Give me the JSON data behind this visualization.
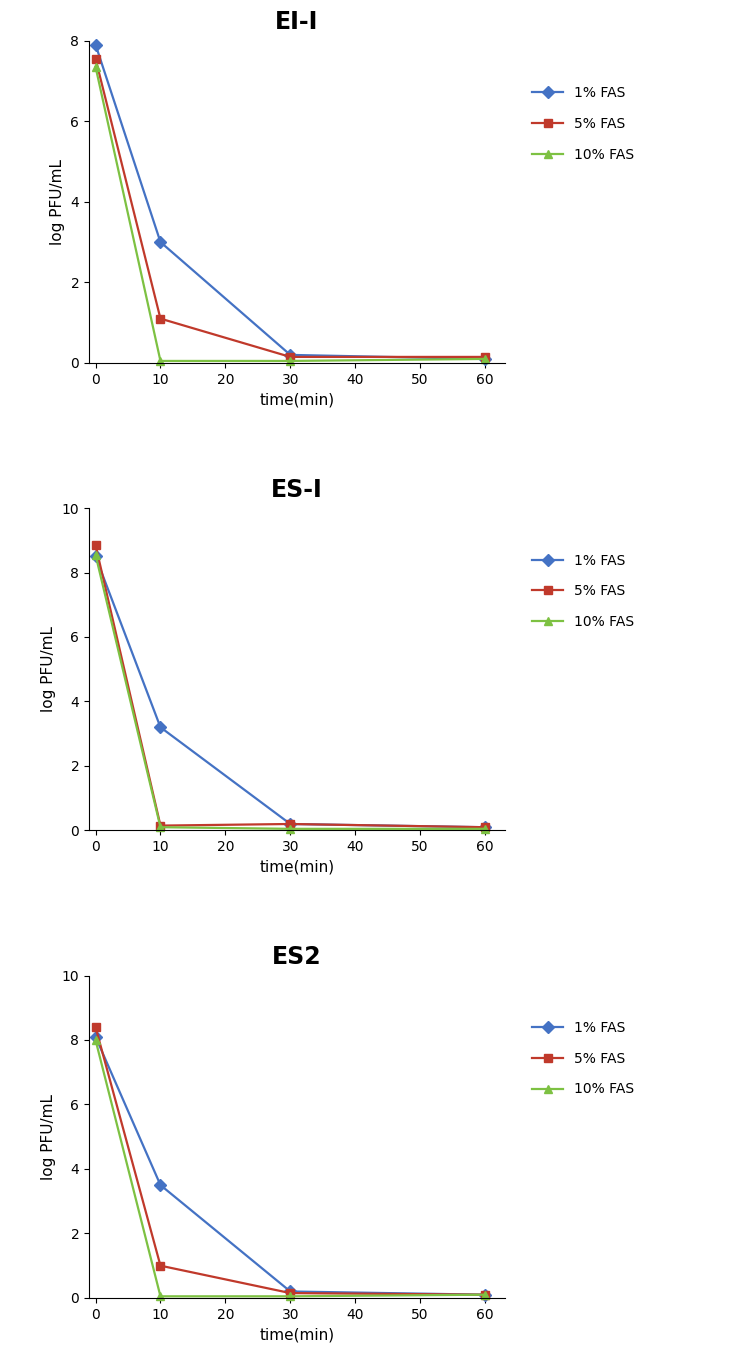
{
  "charts": [
    {
      "title": "EI-I",
      "ylim": [
        0,
        8
      ],
      "yticks": [
        0,
        2,
        4,
        6,
        8
      ],
      "series": [
        {
          "label": "1% FAS",
          "color": "#4472C4",
          "marker": "D",
          "x": [
            0,
            10,
            30,
            60
          ],
          "y": [
            7.9,
            3.0,
            0.2,
            0.1
          ]
        },
        {
          "label": "5% FAS",
          "color": "#C0392B",
          "marker": "s",
          "x": [
            0,
            10,
            30,
            60
          ],
          "y": [
            7.55,
            1.1,
            0.15,
            0.15
          ]
        },
        {
          "label": "10% FAS",
          "color": "#7DC142",
          "marker": "^",
          "x": [
            0,
            10,
            30,
            60
          ],
          "y": [
            7.35,
            0.05,
            0.05,
            0.1
          ]
        }
      ]
    },
    {
      "title": "ES-I",
      "ylim": [
        0,
        10
      ],
      "yticks": [
        0,
        2,
        4,
        6,
        8,
        10
      ],
      "series": [
        {
          "label": "1% FAS",
          "color": "#4472C4",
          "marker": "D",
          "x": [
            0,
            10,
            30,
            60
          ],
          "y": [
            8.5,
            3.2,
            0.2,
            0.1
          ]
        },
        {
          "label": "5% FAS",
          "color": "#C0392B",
          "marker": "s",
          "x": [
            0,
            10,
            30,
            60
          ],
          "y": [
            8.85,
            0.15,
            0.2,
            0.1
          ]
        },
        {
          "label": "10% FAS",
          "color": "#7DC142",
          "marker": "^",
          "x": [
            0,
            10,
            30,
            60
          ],
          "y": [
            8.55,
            0.1,
            0.05,
            0.05
          ]
        }
      ]
    },
    {
      "title": "ES2",
      "ylim": [
        0,
        10
      ],
      "yticks": [
        0,
        2,
        4,
        6,
        8,
        10
      ],
      "series": [
        {
          "label": "1% FAS",
          "color": "#4472C4",
          "marker": "D",
          "x": [
            0,
            10,
            30,
            60
          ],
          "y": [
            8.1,
            3.5,
            0.2,
            0.1
          ]
        },
        {
          "label": "5% FAS",
          "color": "#C0392B",
          "marker": "s",
          "x": [
            0,
            10,
            30,
            60
          ],
          "y": [
            8.4,
            1.0,
            0.15,
            0.1
          ]
        },
        {
          "label": "10% FAS",
          "color": "#7DC142",
          "marker": "^",
          "x": [
            0,
            10,
            30,
            60
          ],
          "y": [
            8.0,
            0.05,
            0.05,
            0.1
          ]
        }
      ]
    }
  ],
  "xlabel": "time(min)",
  "ylabel": "log PFU/mL",
  "xticks": [
    0,
    10,
    20,
    30,
    40,
    50,
    60
  ],
  "xlim": [
    -1,
    63
  ],
  "background_color": "#FFFFFF",
  "title_fontsize": 17,
  "label_fontsize": 11,
  "tick_fontsize": 10,
  "legend_fontsize": 10,
  "line_width": 1.6,
  "marker_size": 6
}
